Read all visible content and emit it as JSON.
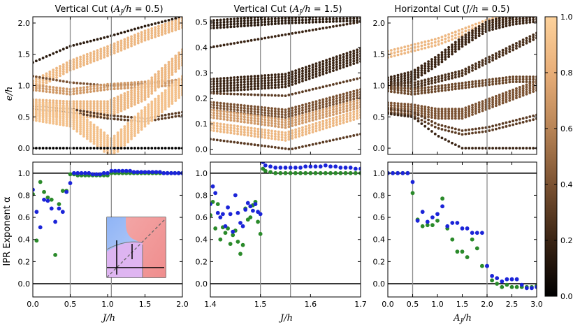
{
  "figure": {
    "ylabel_top": "e/h",
    "ylabel_bottom": "IPR Exponent α",
    "colorbar": {
      "ticks": [
        "1.0",
        "0.8",
        "0.6",
        "0.4",
        "0.2",
        "0.0"
      ],
      "range": [
        0,
        1
      ],
      "colors": [
        "#000000",
        "#3a2414",
        "#7b5232",
        "#b88456",
        "#e8ae78",
        "#fdd29c"
      ]
    }
  },
  "chart_data": [
    {
      "type": "scatter",
      "id": "top-left",
      "title": "Vertical Cut (A_J/h = 0.5)",
      "xlabel": "J/h",
      "ylabel": "e/h",
      "xlim": [
        0,
        2
      ],
      "ylim": [
        -0.1,
        2.1
      ],
      "xticks": [
        "0.0",
        "0.5",
        "1.0",
        "1.5",
        "2.0"
      ],
      "yticks": [
        "0.0",
        "0.5",
        "1.0",
        "1.5",
        "2.0"
      ],
      "vlines": [
        0.5,
        1.05
      ],
      "bands": [
        {
          "x": [
            0.0,
            0.5,
            1.0,
            1.5,
            2.0
          ],
          "y": [
            1.37,
            1.63,
            1.78,
            1.95,
            2.1
          ],
          "width": 0.02,
          "color": 0.15
        },
        {
          "x": [
            0.0,
            0.5,
            1.0,
            1.5,
            2.0
          ],
          "y": [
            1.0,
            1.32,
            1.55,
            1.8,
            2.0
          ],
          "width": 0.15,
          "color": 0.85
        },
        {
          "x": [
            0.0,
            0.5,
            1.0,
            1.5,
            2.0
          ],
          "y": [
            1.15,
            1.05,
            1.0,
            1.03,
            1.1
          ],
          "width": 0.03,
          "color": 0.4
        },
        {
          "x": [
            0.0,
            0.5,
            1.0,
            1.5,
            2.0
          ],
          "y": [
            0.97,
            0.9,
            0.98,
            1.02,
            1.05
          ],
          "width": 0.08,
          "color": 0.7
        },
        {
          "x": [
            0.0,
            0.5,
            1.0,
            1.5,
            2.0
          ],
          "y": [
            0.65,
            0.62,
            0.62,
            0.9,
            1.45
          ],
          "width": 0.25,
          "color": 0.85
        },
        {
          "x": [
            0.0,
            0.5,
            1.0,
            1.5,
            2.0
          ],
          "y": [
            0.65,
            0.6,
            0.5,
            0.45,
            0.55
          ],
          "width": 0.05,
          "color": 0.3
        },
        {
          "x": [
            0.0,
            0.5,
            0.9,
            1.05,
            1.5,
            2.0
          ],
          "y": [
            0.6,
            0.5,
            0.15,
            0.0,
            0.5,
            1.0
          ],
          "width": 0.3,
          "color": 0.9
        },
        {
          "x": [
            1.05,
            2.0
          ],
          "y": [
            0.0,
            0.0
          ],
          "width": 0.005,
          "color": 0.0
        }
      ]
    },
    {
      "type": "scatter",
      "id": "top-mid",
      "title": "Vertical Cut (A_J/h = 1.5)",
      "xlabel": "J/h",
      "ylabel": "e/h",
      "xlim": [
        1.4,
        1.7
      ],
      "ylim": [
        -0.02,
        0.52
      ],
      "xticks": [
        "1.4",
        "1.5",
        "1.6",
        "1.7"
      ],
      "yticks": [
        "0.0",
        "0.1",
        "0.2",
        "0.3",
        "0.4",
        "0.5"
      ],
      "vlines": [
        1.5,
        1.56
      ],
      "bands": [
        {
          "x": [
            1.4,
            1.55,
            1.7
          ],
          "y": [
            0.49,
            0.51,
            0.52
          ],
          "width": 0.03,
          "color": 0.15
        },
        {
          "x": [
            1.4,
            1.55,
            1.7
          ],
          "y": [
            0.4,
            0.45,
            0.5
          ],
          "width": 0.004,
          "color": 0.2
        },
        {
          "x": [
            1.4,
            1.55,
            1.7
          ],
          "y": [
            0.25,
            0.27,
            0.37
          ],
          "width": 0.05,
          "color": 0.2
        },
        {
          "x": [
            1.4,
            1.55,
            1.7
          ],
          "y": [
            0.22,
            0.21,
            0.28
          ],
          "width": 0.01,
          "color": 0.3
        },
        {
          "x": [
            1.4,
            1.55,
            1.7
          ],
          "y": [
            0.17,
            0.14,
            0.22
          ],
          "width": 0.03,
          "color": 0.4
        },
        {
          "x": [
            1.4,
            1.55,
            1.7
          ],
          "y": [
            0.14,
            0.1,
            0.18
          ],
          "width": 0.03,
          "color": 0.7
        },
        {
          "x": [
            1.4,
            1.55,
            1.7
          ],
          "y": [
            0.09,
            0.05,
            0.14
          ],
          "width": 0.03,
          "color": 0.85
        },
        {
          "x": [
            1.4,
            1.56,
            1.7
          ],
          "y": [
            0.04,
            0.0,
            0.06
          ],
          "width": 0.01,
          "color": 0.3
        }
      ]
    },
    {
      "type": "scatter",
      "id": "top-right",
      "title": "Horizontal Cut (J/h = 0.5)",
      "xlabel": "A_J/h",
      "ylabel": "e/h",
      "xlim": [
        0,
        3
      ],
      "ylim": [
        -0.1,
        2.1
      ],
      "xticks": [
        "0.0",
        "0.5",
        "1.0",
        "1.5",
        "2.0",
        "2.5",
        "3.0"
      ],
      "yticks": [
        "0.0",
        "0.5",
        "1.0",
        "1.5",
        "2.0"
      ],
      "vlines": [
        0.5,
        2.0
      ],
      "bands": [
        {
          "x": [
            0.0,
            0.5,
            1.0,
            1.5,
            2.0,
            2.5,
            3.0
          ],
          "y": [
            1.5,
            1.6,
            1.7,
            1.85,
            2.0,
            2.1,
            2.15
          ],
          "width": 0.1,
          "color": 0.85
        },
        {
          "x": [
            0.0,
            0.5,
            1.0,
            1.5,
            2.0,
            2.5,
            3.0
          ],
          "y": [
            1.05,
            1.15,
            1.4,
            1.7,
            1.95,
            2.05,
            2.1
          ],
          "width": 0.15,
          "color": 0.2
        },
        {
          "x": [
            0.0,
            0.5,
            1.0,
            1.5,
            2.0,
            2.5,
            3.0
          ],
          "y": [
            1.0,
            1.0,
            1.1,
            1.2,
            1.4,
            1.6,
            1.8
          ],
          "width": 0.08,
          "color": 0.25
        },
        {
          "x": [
            0.0,
            0.5,
            1.0,
            1.5,
            2.0,
            2.5,
            3.0
          ],
          "y": [
            0.95,
            0.9,
            0.95,
            1.0,
            1.05,
            1.1,
            1.1
          ],
          "width": 0.08,
          "color": 0.35
        },
        {
          "x": [
            0.0,
            0.5,
            1.0,
            1.5,
            2.0,
            2.5,
            3.0
          ],
          "y": [
            0.65,
            0.62,
            0.55,
            0.55,
            0.7,
            0.85,
            1.0
          ],
          "width": 0.15,
          "color": 0.4
        },
        {
          "x": [
            0.0,
            0.5,
            1.0,
            1.5,
            2.0,
            2.5,
            3.0
          ],
          "y": [
            0.6,
            0.55,
            0.35,
            0.25,
            0.3,
            0.4,
            0.5
          ],
          "width": 0.06,
          "color": 0.3
        },
        {
          "x": [
            0.0,
            0.5,
            1.0,
            1.5,
            2.0,
            2.5,
            3.0
          ],
          "y": [
            0.55,
            0.5,
            0.2,
            0.0,
            0.0,
            0.0,
            0.0
          ],
          "width": 0.04,
          "color": 0.2
        }
      ]
    },
    {
      "type": "scatter",
      "id": "bottom-left",
      "xlabel": "J/h",
      "ylabel": "IPR Exponent α",
      "xlim": [
        0,
        2
      ],
      "ylim": [
        -0.12,
        1.1
      ],
      "xticks": [
        "0.0",
        "0.5",
        "1.0",
        "1.5",
        "2.0"
      ],
      "yticks": [
        "0.0",
        "0.2",
        "0.4",
        "0.6",
        "0.8",
        "1.0"
      ],
      "vlines": [
        0.5,
        1.05
      ],
      "hlines": [
        0.0,
        1.0
      ],
      "series": [
        {
          "name": "blue",
          "color": "#1b24d8",
          "x": [
            0.0,
            0.05,
            0.1,
            0.15,
            0.2,
            0.25,
            0.3,
            0.35,
            0.4,
            0.45,
            0.5,
            0.55,
            0.6,
            0.65,
            0.7,
            0.75,
            0.8,
            0.85,
            0.9,
            0.95,
            1.0,
            1.05,
            1.1,
            1.15,
            1.2,
            1.25,
            1.3,
            1.35,
            1.4,
            1.45,
            1.5,
            1.55,
            1.6,
            1.65,
            1.7,
            1.75,
            1.8,
            1.85,
            1.9,
            1.95,
            2.0
          ],
          "y": [
            0.85,
            0.65,
            0.51,
            0.76,
            0.75,
            0.68,
            0.56,
            0.68,
            0.65,
            0.83,
            0.91,
            1.0,
            1.0,
            1.0,
            1.0,
            1.0,
            0.99,
            0.99,
            0.99,
            1.0,
            1.0,
            1.02,
            1.02,
            1.02,
            1.02,
            1.02,
            1.02,
            1.01,
            1.01,
            1.01,
            1.01,
            1.01,
            1.01,
            1.01,
            1.01,
            1.0,
            1.0,
            1.0,
            1.0,
            1.0,
            1.0
          ]
        },
        {
          "name": "green",
          "color": "#2a8a2a",
          "x": [
            0.0,
            0.05,
            0.1,
            0.15,
            0.2,
            0.25,
            0.3,
            0.35,
            0.4,
            0.45,
            0.5,
            0.55,
            0.6,
            0.65,
            0.7,
            0.75,
            0.8,
            0.85,
            0.9,
            0.95,
            1.0,
            1.05,
            1.1,
            1.15,
            1.2,
            1.25,
            1.3,
            1.35,
            1.4,
            1.45,
            1.5,
            1.55,
            1.6,
            1.65,
            1.7,
            1.75,
            1.8,
            1.85,
            1.9,
            1.95,
            2.0
          ],
          "y": [
            0.81,
            0.39,
            0.92,
            0.83,
            0.78,
            0.76,
            0.26,
            0.72,
            0.84,
            0.84,
            0.99,
            0.99,
            0.98,
            0.98,
            0.98,
            0.98,
            0.98,
            0.98,
            0.98,
            0.98,
            0.98,
            1.0,
            1.0,
            1.0,
            1.0,
            1.0,
            1.0,
            1.0,
            1.0,
            1.0,
            1.0,
            1.0,
            1.0,
            1.0,
            1.0,
            1.0,
            1.0,
            1.0,
            1.0,
            1.0,
            1.0
          ]
        }
      ]
    },
    {
      "type": "scatter",
      "id": "bottom-mid",
      "xlabel": "J/h",
      "ylabel": "IPR Exponent α",
      "xlim": [
        1.4,
        1.7
      ],
      "ylim": [
        -0.12,
        1.1
      ],
      "xticks": [
        "1.4",
        "1.5",
        "1.6",
        "1.7"
      ],
      "yticks": [
        "0.0",
        "0.2",
        "0.4",
        "0.6",
        "0.8",
        "1.0"
      ],
      "vlines": [
        1.5,
        1.56
      ],
      "hlines": [
        0.0,
        1.0
      ],
      "series": [
        {
          "name": "blue",
          "color": "#1b24d8",
          "x": [
            1.4,
            1.405,
            1.41,
            1.415,
            1.42,
            1.425,
            1.43,
            1.435,
            1.44,
            1.445,
            1.45,
            1.455,
            1.46,
            1.465,
            1.47,
            1.475,
            1.48,
            1.485,
            1.49,
            1.495,
            1.5,
            1.505,
            1.51,
            1.52,
            1.53,
            1.54,
            1.55,
            1.56,
            1.57,
            1.58,
            1.59,
            1.6,
            1.61,
            1.62,
            1.63,
            1.64,
            1.65,
            1.66,
            1.67,
            1.68,
            1.69,
            1.7
          ],
          "y": [
            0.72,
            0.88,
            0.82,
            0.64,
            0.6,
            0.63,
            0.52,
            0.69,
            0.63,
            0.47,
            0.8,
            0.64,
            0.55,
            0.52,
            0.67,
            0.73,
            0.7,
            0.66,
            0.72,
            0.65,
            0.63,
            1.1,
            1.07,
            1.06,
            1.05,
            1.05,
            1.05,
            1.05,
            1.05,
            1.05,
            1.06,
            1.06,
            1.06,
            1.06,
            1.07,
            1.06,
            1.06,
            1.05,
            1.05,
            1.05,
            1.04,
            1.04
          ]
        },
        {
          "name": "green",
          "color": "#2a8a2a",
          "x": [
            1.4,
            1.405,
            1.41,
            1.415,
            1.42,
            1.425,
            1.43,
            1.435,
            1.44,
            1.445,
            1.45,
            1.455,
            1.46,
            1.465,
            1.47,
            1.475,
            1.48,
            1.485,
            1.49,
            1.495,
            1.5,
            1.505,
            1.51,
            1.52,
            1.53,
            1.54,
            1.55,
            1.56,
            1.57,
            1.58,
            1.59,
            1.6,
            1.61,
            1.62,
            1.63,
            1.64,
            1.65,
            1.66,
            1.67,
            1.68,
            1.69,
            1.7
          ],
          "y": [
            0.62,
            0.74,
            0.5,
            0.72,
            0.4,
            0.51,
            0.46,
            0.5,
            0.36,
            0.44,
            0.48,
            0.38,
            0.27,
            0.35,
            0.68,
            0.58,
            0.6,
            0.71,
            0.74,
            0.56,
            0.45,
            1.04,
            1.02,
            1.01,
            1.0,
            1.0,
            1.0,
            1.0,
            1.0,
            1.0,
            1.0,
            1.0,
            1.0,
            1.0,
            1.0,
            1.0,
            1.0,
            1.0,
            1.0,
            1.0,
            1.0,
            1.0
          ]
        }
      ]
    },
    {
      "type": "scatter",
      "id": "bottom-right",
      "xlabel": "A_J/h",
      "ylabel": "IPR Exponent α",
      "xlim": [
        0,
        3
      ],
      "ylim": [
        -0.12,
        1.1
      ],
      "xticks": [
        "0.0",
        "0.5",
        "1.0",
        "1.5",
        "2.0",
        "2.5",
        "3.0"
      ],
      "yticks": [
        "0.0",
        "0.2",
        "0.4",
        "0.6",
        "0.8",
        "1.0"
      ],
      "vlines": [
        0.5,
        2.0
      ],
      "hlines": [
        0.0,
        1.0
      ],
      "series": [
        {
          "name": "blue",
          "color": "#1b24d8",
          "x": [
            0.0,
            0.1,
            0.2,
            0.3,
            0.4,
            0.5,
            0.6,
            0.7,
            0.8,
            0.9,
            1.0,
            1.1,
            1.2,
            1.3,
            1.4,
            1.5,
            1.6,
            1.7,
            1.8,
            1.9,
            2.0,
            2.1,
            2.2,
            2.3,
            2.4,
            2.5,
            2.6,
            2.7,
            2.8,
            2.9,
            3.0
          ],
          "y": [
            1.0,
            1.0,
            1.0,
            1.0,
            1.0,
            0.92,
            0.57,
            0.65,
            0.56,
            0.6,
            0.63,
            0.7,
            0.52,
            0.55,
            0.55,
            0.5,
            0.5,
            0.46,
            0.46,
            0.46,
            0.16,
            0.07,
            0.05,
            0.02,
            0.04,
            0.04,
            0.04,
            -0.01,
            -0.04,
            -0.04,
            -0.03
          ]
        },
        {
          "name": "green",
          "color": "#2a8a2a",
          "x": [
            0.0,
            0.1,
            0.2,
            0.3,
            0.4,
            0.5,
            0.6,
            0.7,
            0.8,
            0.9,
            1.0,
            1.1,
            1.2,
            1.3,
            1.4,
            1.5,
            1.6,
            1.7,
            1.8,
            1.9,
            2.0,
            2.1,
            2.2,
            2.3,
            2.4,
            2.5,
            2.6,
            2.7,
            2.8,
            2.9,
            3.0
          ],
          "y": [
            1.0,
            1.0,
            1.0,
            1.0,
            1.0,
            0.82,
            0.58,
            0.52,
            0.53,
            0.53,
            0.57,
            0.77,
            0.5,
            0.4,
            0.29,
            0.29,
            0.24,
            0.4,
            0.32,
            0.16,
            0.16,
            0.03,
            0.0,
            -0.03,
            -0.01,
            -0.03,
            -0.03,
            -0.03,
            -0.03,
            -0.03,
            -0.02
          ]
        }
      ]
    }
  ]
}
